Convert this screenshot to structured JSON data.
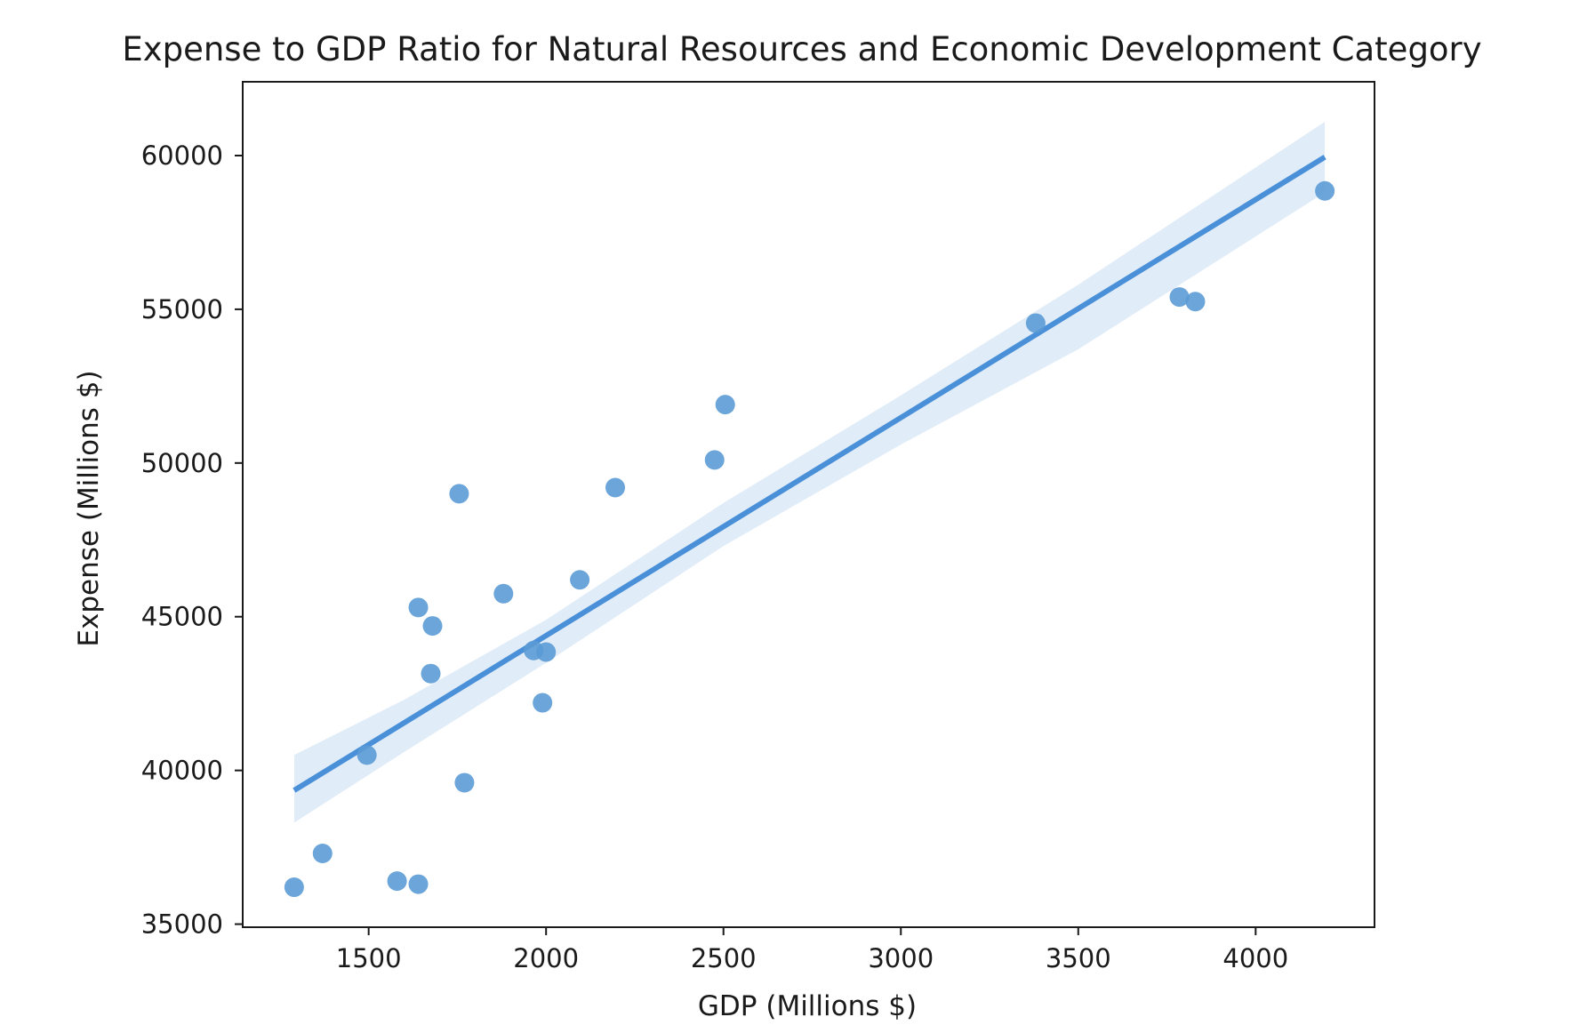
{
  "chart_data": {
    "type": "scatter",
    "title": "Expense to GDP Ratio for Natural Resources and Economic Development Category",
    "xlabel": "GDP (Millions $)",
    "ylabel": "Expense (Millions $)",
    "xlim": [
      1145,
      4335
    ],
    "ylim": [
      34900,
      62400
    ],
    "xticks": [
      1500,
      2000,
      2500,
      3000,
      3500,
      4000
    ],
    "yticks": [
      35000,
      40000,
      45000,
      50000,
      55000,
      60000
    ],
    "xtick_labels": [
      "1500",
      "2000",
      "2500",
      "3000",
      "3500",
      "4000"
    ],
    "ytick_labels": [
      "35000",
      "40000",
      "45000",
      "50000",
      "55000",
      "60000"
    ],
    "grid": false,
    "points": [
      {
        "x": 1290,
        "y": 36200
      },
      {
        "x": 1370,
        "y": 37300
      },
      {
        "x": 1495,
        "y": 40500
      },
      {
        "x": 1580,
        "y": 36400
      },
      {
        "x": 1640,
        "y": 36300
      },
      {
        "x": 1640,
        "y": 45300
      },
      {
        "x": 1675,
        "y": 43150
      },
      {
        "x": 1680,
        "y": 44700
      },
      {
        "x": 1755,
        "y": 49000
      },
      {
        "x": 1770,
        "y": 39600
      },
      {
        "x": 1880,
        "y": 45750
      },
      {
        "x": 1965,
        "y": 43900
      },
      {
        "x": 1990,
        "y": 42200
      },
      {
        "x": 2000,
        "y": 43850
      },
      {
        "x": 2095,
        "y": 46200
      },
      {
        "x": 2195,
        "y": 49200
      },
      {
        "x": 2475,
        "y": 50100
      },
      {
        "x": 2505,
        "y": 51900
      },
      {
        "x": 3380,
        "y": 54550
      },
      {
        "x": 3785,
        "y": 55400
      },
      {
        "x": 3830,
        "y": 55250
      },
      {
        "x": 4195,
        "y": 58850
      }
    ],
    "regression_line": {
      "x": [
        1290,
        4195
      ],
      "y": [
        39350,
        59950
      ]
    },
    "confidence_band": {
      "x": [
        1290,
        1600,
        2000,
        2500,
        3000,
        3500,
        4195
      ],
      "upper": [
        40500,
        42300,
        44900,
        48700,
        52200,
        55800,
        61100
      ],
      "lower": [
        38300,
        40600,
        43500,
        47300,
        50600,
        53700,
        58800
      ]
    },
    "colors": {
      "points": "#5b9bd5",
      "line": "#4a90d9",
      "band": "#dbe9f7",
      "axis": "#1a1a1a"
    }
  }
}
